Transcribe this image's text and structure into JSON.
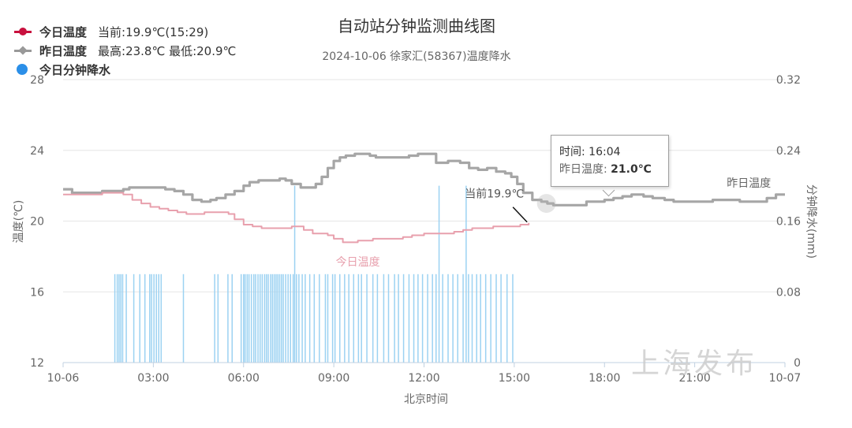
{
  "legend": [
    {
      "name": "今日温度",
      "info": "当前:19.9℃(15:29)",
      "color": "#c8103e",
      "marker": "dot"
    },
    {
      "name": "昨日温度",
      "info": "最高:23.8℃ 最低:20.9℃",
      "color": "#999999",
      "marker": "diamond"
    },
    {
      "name": "今日分钟降水",
      "info": "",
      "color": "#2b8fe8",
      "marker": "bigdot"
    }
  ],
  "tooltip": {
    "time_label": "时间: ",
    "time_value": "16:04",
    "series_label": "昨日温度: ",
    "series_value": "21.0℃"
  },
  "watermark": "上海发布",
  "colors": {
    "today": "#e8a0ad",
    "today_dark": "#111111",
    "yesterday": "#a6a6a6",
    "rain": "#9cd2f2",
    "grid": "#e6e6e6",
    "axis_text": "#666666"
  },
  "chart_data": {
    "type": "line",
    "title": "自动站分钟监测曲线图",
    "subtitle": "2024-10-06 徐家汇(58367)温度降水",
    "xlabel": "北京时间",
    "ylabel": "温度(℃)",
    "y2label": "分钟降水(mm)",
    "x_range_hours": [
      0,
      24
    ],
    "x_ticks": [
      "10-06",
      "03:00",
      "06:00",
      "09:00",
      "12:00",
      "15:00",
      "18:00",
      "21:00",
      "10-07"
    ],
    "ylim": [
      12,
      28
    ],
    "y_ticks": [
      12,
      16,
      20,
      24,
      28
    ],
    "y2lim": [
      0,
      0.32
    ],
    "y2_ticks": [
      "0",
      "0.08",
      "0.16",
      "0.24",
      "0.32"
    ],
    "grid": true,
    "annotations": [
      {
        "text": "当前19.9℃",
        "x": 15.48,
        "y": 19.9
      },
      {
        "text": "今日温度",
        "series": "今日温度"
      },
      {
        "text": "昨日温度",
        "series": "昨日温度"
      }
    ],
    "series": [
      {
        "name": "昨日温度",
        "x": [
          0.0,
          0.3,
          0.7,
          1.0,
          1.3,
          1.5,
          1.7,
          2.0,
          2.2,
          2.5,
          2.8,
          3.1,
          3.4,
          3.7,
          4.0,
          4.3,
          4.6,
          4.9,
          5.1,
          5.4,
          5.7,
          6.0,
          6.2,
          6.5,
          6.8,
          7.0,
          7.2,
          7.4,
          7.6,
          7.9,
          8.1,
          8.4,
          8.6,
          8.8,
          9.0,
          9.2,
          9.4,
          9.7,
          10.0,
          10.2,
          10.4,
          10.7,
          11.0,
          11.2,
          11.5,
          11.8,
          12.0,
          12.4,
          12.8,
          13.2,
          13.5,
          13.8,
          14.1,
          14.4,
          14.7,
          14.9,
          15.1,
          15.3,
          15.6,
          15.9,
          16.1,
          16.3,
          16.5,
          16.8,
          17.1,
          17.4,
          17.7,
          18.0,
          18.3,
          18.6,
          18.9,
          19.3,
          19.6,
          20.0,
          20.3,
          20.6,
          21.0,
          21.3,
          21.6,
          21.9,
          22.2,
          22.5,
          22.8,
          23.1,
          23.4,
          23.7,
          24.0
        ],
        "y": [
          21.8,
          21.6,
          21.6,
          21.6,
          21.7,
          21.7,
          21.7,
          21.8,
          21.9,
          21.9,
          21.9,
          21.9,
          21.8,
          21.7,
          21.5,
          21.2,
          21.1,
          21.2,
          21.3,
          21.5,
          21.7,
          22.0,
          22.2,
          22.3,
          22.3,
          22.3,
          22.4,
          22.3,
          22.1,
          21.9,
          21.9,
          22.1,
          22.5,
          23.0,
          23.4,
          23.6,
          23.7,
          23.8,
          23.8,
          23.7,
          23.6,
          23.6,
          23.6,
          23.6,
          23.7,
          23.8,
          23.8,
          23.3,
          23.4,
          23.3,
          23.0,
          22.9,
          23.0,
          22.8,
          22.7,
          22.5,
          22.1,
          21.6,
          21.2,
          21.1,
          21.0,
          20.9,
          20.9,
          20.9,
          20.9,
          21.1,
          21.1,
          21.2,
          21.3,
          21.4,
          21.5,
          21.4,
          21.3,
          21.2,
          21.1,
          21.1,
          21.1,
          21.1,
          21.2,
          21.2,
          21.2,
          21.1,
          21.1,
          21.1,
          21.3,
          21.5,
          21.5
        ]
      },
      {
        "name": "今日温度",
        "x": [
          0.0,
          0.3,
          0.7,
          1.0,
          1.3,
          1.5,
          1.8,
          2.0,
          2.3,
          2.6,
          2.9,
          3.2,
          3.5,
          3.8,
          4.1,
          4.4,
          4.7,
          5.0,
          5.2,
          5.5,
          5.7,
          6.0,
          6.3,
          6.6,
          7.0,
          7.3,
          7.6,
          7.8,
          8.0,
          8.3,
          8.6,
          8.8,
          9.0,
          9.3,
          9.5,
          9.8,
          10.0,
          10.3,
          10.6,
          11.0,
          11.3,
          11.6,
          12.0,
          12.3,
          12.6,
          13.0,
          13.3,
          13.6,
          14.0,
          14.3,
          14.6,
          14.9,
          15.2,
          15.48
        ],
        "y": [
          21.5,
          21.5,
          21.5,
          21.5,
          21.6,
          21.6,
          21.6,
          21.5,
          21.2,
          21.0,
          20.8,
          20.7,
          20.6,
          20.5,
          20.4,
          20.4,
          20.5,
          20.5,
          20.5,
          20.4,
          20.1,
          19.8,
          19.7,
          19.6,
          19.6,
          19.6,
          19.7,
          19.7,
          19.5,
          19.3,
          19.3,
          19.2,
          19.0,
          18.8,
          18.8,
          18.9,
          18.9,
          19.0,
          19.0,
          19.0,
          19.1,
          19.2,
          19.3,
          19.3,
          19.3,
          19.4,
          19.5,
          19.6,
          19.6,
          19.7,
          19.7,
          19.7,
          19.8,
          19.9
        ]
      },
      {
        "name": "今日分钟降水",
        "axis": "y2",
        "type": "bar",
        "x": [
          1.72,
          1.8,
          1.86,
          1.92,
          1.98,
          2.1,
          2.35,
          2.55,
          2.72,
          2.88,
          2.94,
          3.02,
          3.1,
          3.18,
          3.26,
          4.0,
          5.04,
          5.15,
          5.48,
          5.62,
          5.92,
          6.0,
          6.05,
          6.12,
          6.18,
          6.26,
          6.34,
          6.4,
          6.48,
          6.55,
          6.62,
          6.7,
          6.76,
          6.82,
          6.9,
          6.96,
          7.02,
          7.08,
          7.14,
          7.2,
          7.26,
          7.32,
          7.4,
          7.48,
          7.56,
          7.65,
          7.7,
          7.76,
          7.84,
          7.95,
          8.05,
          8.2,
          8.35,
          8.52,
          8.72,
          8.8,
          8.96,
          9.04,
          9.2,
          9.36,
          9.5,
          9.66,
          9.82,
          9.92,
          10.1,
          10.3,
          10.45,
          10.66,
          10.82,
          11.02,
          11.15,
          11.32,
          11.5,
          11.66,
          11.8,
          11.95,
          12.12,
          12.28,
          12.4,
          12.5,
          12.62,
          12.8,
          12.96,
          13.12,
          13.3,
          13.4,
          13.48,
          13.6,
          13.75,
          13.88,
          14.05,
          14.22,
          14.4,
          14.56,
          14.76,
          14.95
        ],
        "y": [
          0.1,
          0.1,
          0.1,
          0.1,
          0.1,
          0.1,
          0.1,
          0.1,
          0.1,
          0.1,
          0.1,
          0.1,
          0.1,
          0.1,
          0.1,
          0.1,
          0.1,
          0.1,
          0.1,
          0.1,
          0.1,
          0.1,
          0.1,
          0.1,
          0.1,
          0.1,
          0.1,
          0.1,
          0.1,
          0.1,
          0.1,
          0.1,
          0.1,
          0.1,
          0.1,
          0.1,
          0.1,
          0.1,
          0.1,
          0.1,
          0.1,
          0.1,
          0.1,
          0.1,
          0.1,
          0.1,
          0.2,
          0.1,
          0.1,
          0.1,
          0.1,
          0.1,
          0.1,
          0.1,
          0.1,
          0.1,
          0.1,
          0.1,
          0.1,
          0.1,
          0.1,
          0.1,
          0.1,
          0.1,
          0.1,
          0.1,
          0.1,
          0.1,
          0.1,
          0.1,
          0.1,
          0.1,
          0.1,
          0.1,
          0.1,
          0.1,
          0.1,
          0.1,
          0.1,
          0.2,
          0.1,
          0.1,
          0.1,
          0.1,
          0.1,
          0.2,
          0.1,
          0.1,
          0.1,
          0.1,
          0.1,
          0.1,
          0.1,
          0.1,
          0.1,
          0.1
        ]
      }
    ]
  }
}
